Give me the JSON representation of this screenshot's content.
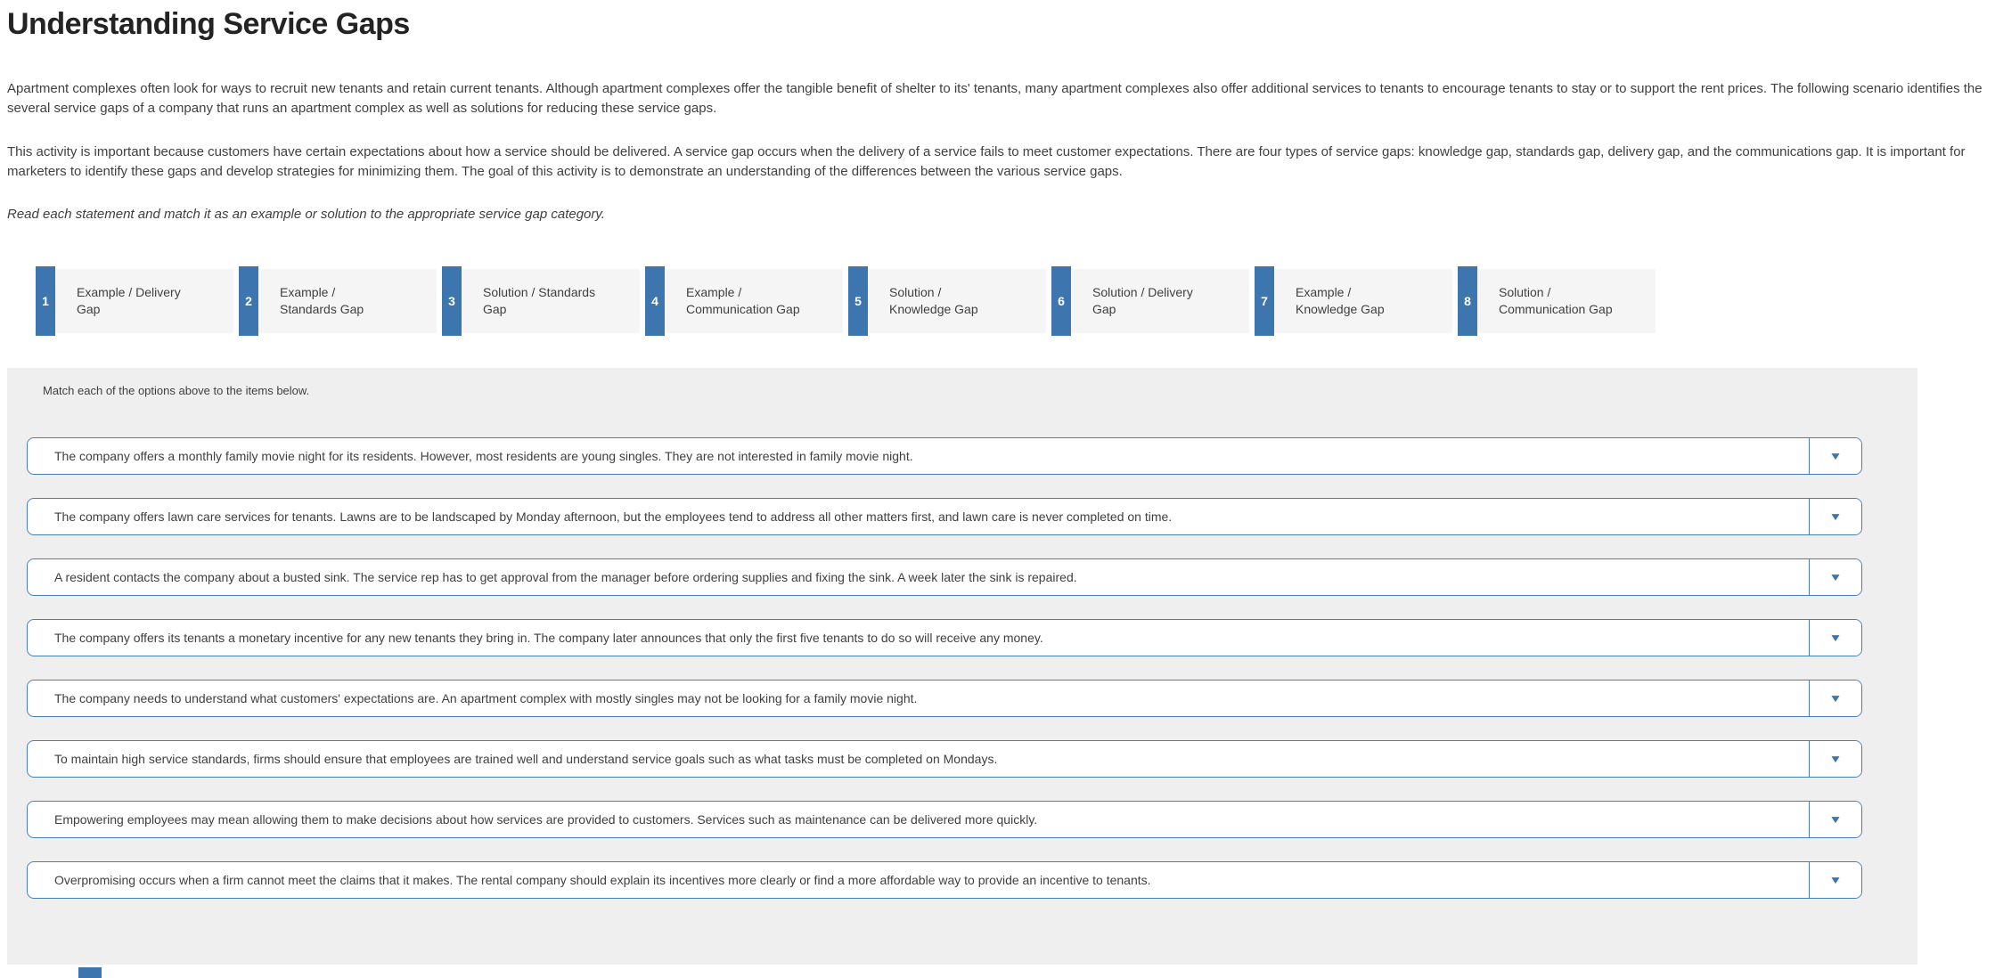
{
  "header": {
    "title": "Understanding Service Gaps"
  },
  "intro": {
    "paragraph1": "Apartment complexes often look for ways to recruit new tenants and retain current tenants. Although apartment complexes offer the tangible benefit of shelter to its' tenants, many apartment complexes also offer additional services to tenants to encourage tenants to stay or to support the rent prices. The following scenario identifies the several service gaps of a company that runs an apartment complex as well as solutions for reducing these service gaps.",
    "paragraph2": "This activity is important because customers have certain expectations about how a service should be delivered. A service gap occurs when the delivery of a service fails to meet customer expectations. There are four types of service gaps: knowledge gap, standards gap, delivery gap, and the communications gap. It is important for marketers to identify these gaps and develop strategies for minimizing them. The goal of this activity is to demonstrate an understanding of the differences between the various service gaps.",
    "instruction": "Read each statement and match it as an example or solution to the appropriate service gap category."
  },
  "options": [
    {
      "number": "1",
      "label": "Example / Delivery\nGap"
    },
    {
      "number": "2",
      "label": "Example /\nStandards Gap"
    },
    {
      "number": "3",
      "label": "Solution / Standards\nGap"
    },
    {
      "number": "4",
      "label": "Example /\nCommunication Gap"
    },
    {
      "number": "5",
      "label": "Solution /\nKnowledge Gap"
    },
    {
      "number": "6",
      "label": "Solution / Delivery\nGap"
    },
    {
      "number": "7",
      "label": "Example /\nKnowledge Gap"
    },
    {
      "number": "8",
      "label": "Solution /\nCommunication Gap"
    }
  ],
  "matching": {
    "prompt": "Match each of the options above to the items below.",
    "items": [
      {
        "text": "The company offers a monthly family movie night for its residents. However, most residents are young singles. They are not interested in family movie night."
      },
      {
        "text": "The company offers lawn care services for tenants. Lawns are to be landscaped by Monday afternoon, but the employees tend to address all other matters first, and lawn care is never completed on time."
      },
      {
        "text": "A resident contacts the company about a busted sink. The service rep has to get approval from the manager before ordering supplies and fixing the sink. A week later the sink is repaired."
      },
      {
        "text": "The company offers its tenants a monetary incentive for any new tenants they bring in. The company later announces that only the first five tenants to do so will receive any money."
      },
      {
        "text": "The company needs to understand what customers' expectations are. An apartment complex with mostly singles may not be looking for a family movie night."
      },
      {
        "text": "To maintain high service standards, firms should ensure that employees are trained well and understand service goals such as what tasks must be completed on Mondays."
      },
      {
        "text": "Empowering employees may mean allowing them to make decisions about how services are provided to customers. Services such as maintenance can be delivered more quickly."
      },
      {
        "text": "Overpromising occurs when a firm cannot meet the claims that it makes. The rental company should explain its incentives more clearly or find a more affordable way to provide an incentive to tenants."
      }
    ]
  },
  "icons": {
    "dropdown_caret": "▼"
  },
  "colors": {
    "accent_blue": "#3d76af",
    "row_border": "#4a7eb5",
    "panel_gray": "#efefef",
    "chip_gray": "#f5f5f5"
  }
}
